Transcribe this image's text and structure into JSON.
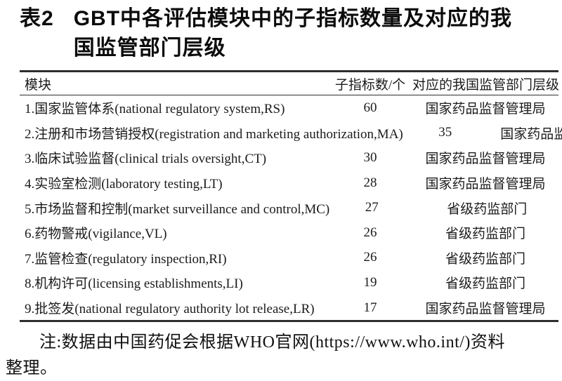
{
  "caption": {
    "label": "表2",
    "title_lines": [
      "GBT中各评估模块中的子指标数量及对应的我",
      "国监管部门层级"
    ]
  },
  "table": {
    "columns": [
      "模块",
      "子指标数/个",
      "对应的我国监管部门层级"
    ],
    "rows": [
      {
        "module": "1.国家监管体系(national regulatory system,RS)",
        "count": "60",
        "level": "国家药品监督管理局"
      },
      {
        "module": "2.注册和市场营销授权(registration and marketing authorization,MA)",
        "count": "35",
        "level": "国家药品监督管理局"
      },
      {
        "module": "3.临床试验监督(clinical trials oversight,CT)",
        "count": "30",
        "level": "国家药品监督管理局"
      },
      {
        "module": "4.实验室检测(laboratory testing,LT)",
        "count": "28",
        "level": "国家药品监督管理局"
      },
      {
        "module": "5.市场监督和控制(market surveillance and control,MC)",
        "count": "27",
        "level": "省级药监部门"
      },
      {
        "module": "6.药物警戒(vigilance,VL)",
        "count": "26",
        "level": "省级药监部门"
      },
      {
        "module": "7.监管检查(regulatory inspection,RI)",
        "count": "26",
        "level": "省级药监部门"
      },
      {
        "module": "8.机构许可(licensing establishments,LI)",
        "count": "19",
        "level": "省级药监部门"
      },
      {
        "module": "9.批签发(national regulatory authority lot release,LR)",
        "count": "17",
        "level": "国家药品监督管理局"
      }
    ]
  },
  "note": {
    "lines": [
      "注:数据由中国药促会根据WHO官网(https://www.who.int/)资料",
      "整理。"
    ]
  },
  "colors": {
    "text": "#141414",
    "rule": "#2e2e2e",
    "background": "#ffffff"
  }
}
